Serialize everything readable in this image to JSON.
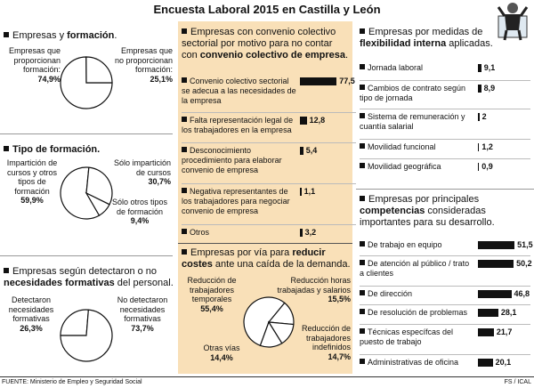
{
  "title": "Encuesta Laboral 2015 en Castilla y León",
  "source": "FUENTE: Ministerio de Empleo y Seguridad Social",
  "credit": "FS / ICAL",
  "chart_data": [
    {
      "type": "pie",
      "title_parts": [
        {
          "text": "Empresas y "
        },
        {
          "text": "formación",
          "bold": true
        },
        {
          "text": "."
        }
      ],
      "categories": [
        "Empresas que proporcionan formación:",
        "Empresas que no proporcionan formación:"
      ],
      "values": [
        74.9,
        25.1
      ],
      "value_labels": [
        "74,9%",
        "25,1%"
      ]
    },
    {
      "type": "pie",
      "title_parts": [
        {
          "text": "Tipo de formación.",
          "bold": true
        }
      ],
      "categories": [
        "Impartición de cursos y otros tipos de formación",
        "Sólo impartición de cursos",
        "Sólo otros tipos de formación"
      ],
      "values": [
        59.9,
        30.7,
        9.4
      ],
      "value_labels": [
        "59,9%",
        "30,7%",
        "9,4%"
      ]
    },
    {
      "type": "pie",
      "title_parts": [
        {
          "text": "Empresas según detectaron o no "
        },
        {
          "text": "necesidades formativas",
          "bold": true
        },
        {
          "text": " del personal."
        }
      ],
      "categories": [
        "Detectaron necesidades formativas",
        "No detectaron necesidades formativas"
      ],
      "values": [
        26.3,
        73.7
      ],
      "value_labels": [
        "26,3%",
        "73,7%"
      ]
    },
    {
      "type": "bar",
      "title_parts": [
        {
          "text": "Empresas con convenio colectivo sectorial por motivo para no contar con "
        },
        {
          "text": "convenio colectivo de empresa",
          "bold": true
        },
        {
          "text": "."
        }
      ],
      "categories": [
        "Convenio colectivo sectorial se adecua a las necesidades de la empresa",
        "Falta representación legal de los trabajadores en la empresa",
        "Desconocimiento procedimiento para elaborar convenio de empresa",
        "Negativa representantes de los trabajadores para negociar convenio de empresa",
        "Otros"
      ],
      "values": [
        77.5,
        12.8,
        5.4,
        1.1,
        3.2
      ],
      "value_labels": [
        "77,5",
        "12,8",
        "5,4",
        "1,1",
        "3,2"
      ],
      "color": "#111111"
    },
    {
      "type": "pie",
      "title_parts": [
        {
          "text": "Empresas por vía para "
        },
        {
          "text": "reducir costes",
          "bold": true
        },
        {
          "text": " ante una caída de la demanda."
        }
      ],
      "categories": [
        "Reducción de trabajadores temporales",
        "Reducción horas trabajadas y salarios",
        "Reducción de trabajadores indefinidos",
        "Otras vías"
      ],
      "values": [
        55.4,
        15.5,
        14.7,
        14.4
      ],
      "value_labels": [
        "55,4%",
        "15,5%",
        "14,7%",
        "14,4%"
      ]
    },
    {
      "type": "bar",
      "title_parts": [
        {
          "text": "Empresas por medidas de "
        },
        {
          "text": "flexibilidad interna",
          "bold": true
        },
        {
          "text": " aplicadas."
        }
      ],
      "categories": [
        "Jornada laboral",
        "Cambios de contrato según tipo de jornada",
        "Sistema de remuneración y cuantía salarial",
        "Movilidad funcional",
        "Movilidad geográfica"
      ],
      "values": [
        9.1,
        8.9,
        2,
        1.2,
        0.9
      ],
      "value_labels": [
        "9,1",
        "8,9",
        "2",
        "1,2",
        "0,9"
      ],
      "color": "#111111"
    },
    {
      "type": "bar",
      "title_parts": [
        {
          "text": "Empresas por principales "
        },
        {
          "text": "competencias",
          "bold": true
        },
        {
          "text": " consideradas importantes para su desarrollo."
        }
      ],
      "categories": [
        "De trabajo en equipo",
        "De atención al público / trato a clientes",
        "De dirección",
        "De resolución de problemas",
        "Técnicas específcas del puesto de trabajo",
        "Administrativas de oficina"
      ],
      "values": [
        51.5,
        50.2,
        46.8,
        28.1,
        21.7,
        20.1
      ],
      "value_labels": [
        "51,5",
        "50,2",
        "46,8",
        "28,1",
        "21,7",
        "20,1"
      ],
      "color": "#111111"
    }
  ]
}
